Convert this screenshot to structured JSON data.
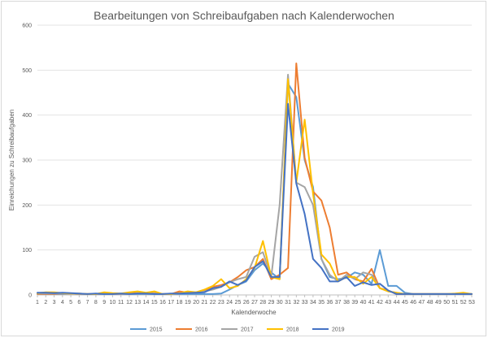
{
  "chart_data": {
    "type": "line",
    "title": "Bearbeitungen von Schreibaufgaben nach Kalenderwochen",
    "xlabel": "Kalenderwoche",
    "ylabel": "Einreichungen zu Schreibaufgaben",
    "ylim": [
      0,
      600
    ],
    "yticks": [
      0,
      100,
      200,
      300,
      400,
      500,
      600
    ],
    "grid": true,
    "legend_position": "bottom",
    "x": [
      1,
      2,
      3,
      4,
      5,
      6,
      7,
      8,
      9,
      10,
      11,
      12,
      13,
      14,
      15,
      16,
      17,
      18,
      19,
      20,
      21,
      22,
      23,
      24,
      25,
      26,
      27,
      28,
      29,
      30,
      31,
      32,
      33,
      34,
      35,
      36,
      37,
      38,
      39,
      40,
      41,
      42,
      43,
      44,
      45,
      46,
      47,
      48,
      49,
      50,
      51,
      52,
      53
    ],
    "series": [
      {
        "name": "2015",
        "color": "#5b9bd5",
        "values": [
          2,
          2,
          2,
          2,
          3,
          2,
          2,
          2,
          2,
          2,
          2,
          2,
          2,
          2,
          2,
          2,
          2,
          2,
          2,
          2,
          2,
          2,
          3,
          12,
          22,
          30,
          55,
          70,
          50,
          35,
          470,
          440,
          300,
          240,
          80,
          40,
          35,
          38,
          50,
          45,
          25,
          100,
          20,
          20,
          5,
          2,
          2,
          2,
          2,
          2,
          2,
          2,
          2
        ]
      },
      {
        "name": "2016",
        "color": "#ed7d31",
        "values": [
          2,
          2,
          2,
          3,
          3,
          2,
          2,
          2,
          3,
          2,
          2,
          3,
          4,
          3,
          4,
          2,
          2,
          8,
          5,
          5,
          10,
          18,
          22,
          28,
          40,
          55,
          62,
          80,
          35,
          45,
          60,
          515,
          305,
          230,
          210,
          150,
          45,
          50,
          35,
          30,
          58,
          15,
          10,
          2,
          2,
          2,
          2,
          2,
          2,
          2,
          2,
          2,
          2
        ]
      },
      {
        "name": "2017",
        "color": "#a5a5a5",
        "values": [
          3,
          3,
          3,
          3,
          3,
          2,
          2,
          2,
          3,
          2,
          2,
          2,
          3,
          3,
          3,
          2,
          2,
          3,
          4,
          6,
          8,
          12,
          18,
          28,
          35,
          40,
          85,
          95,
          40,
          200,
          490,
          250,
          240,
          200,
          80,
          45,
          30,
          45,
          35,
          50,
          45,
          15,
          8,
          5,
          2,
          2,
          2,
          2,
          2,
          2,
          2,
          2,
          2
        ]
      },
      {
        "name": "2018",
        "color": "#ffc000",
        "values": [
          4,
          6,
          6,
          4,
          3,
          3,
          2,
          2,
          6,
          4,
          3,
          6,
          8,
          5,
          8,
          2,
          2,
          4,
          8,
          6,
          12,
          20,
          35,
          15,
          20,
          35,
          60,
          120,
          40,
          35,
          480,
          250,
          390,
          225,
          90,
          70,
          30,
          40,
          40,
          25,
          40,
          15,
          8,
          5,
          2,
          2,
          2,
          2,
          2,
          2,
          3,
          5,
          2
        ]
      },
      {
        "name": "2019",
        "color": "#4472c4",
        "values": [
          5,
          5,
          4,
          5,
          4,
          3,
          2,
          3,
          2,
          2,
          3,
          2,
          3,
          3,
          2,
          2,
          3,
          3,
          4,
          5,
          6,
          15,
          18,
          30,
          22,
          32,
          62,
          75,
          40,
          40,
          425,
          248,
          180,
          80,
          60,
          30,
          30,
          40,
          20,
          28,
          22,
          25,
          10,
          2,
          2,
          2,
          2,
          2,
          2,
          2,
          2,
          2,
          2
        ]
      }
    ]
  }
}
